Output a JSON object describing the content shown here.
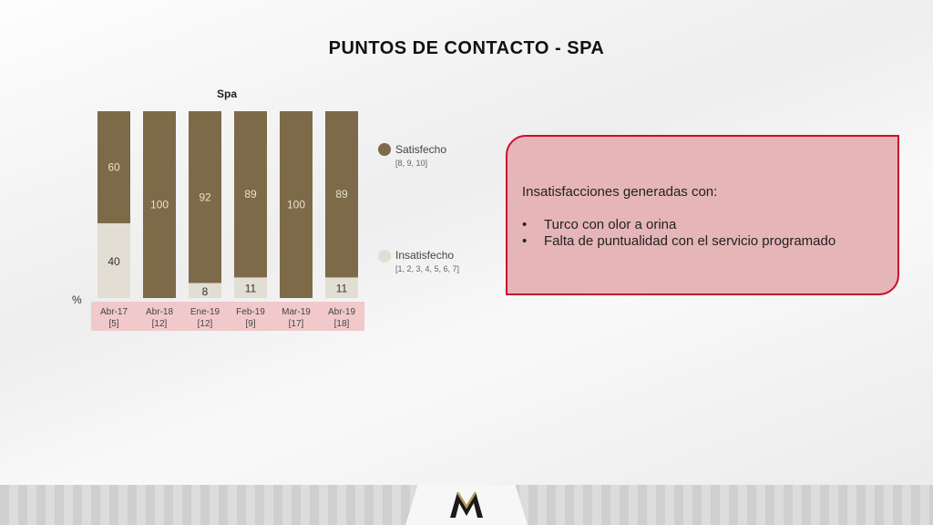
{
  "slide_title": "PUNTOS DE CONTACTO - SPA",
  "chart_data": {
    "type": "bar",
    "stacked": true,
    "title": "Spa",
    "ylabel": "%",
    "ylim": [
      0,
      100
    ],
    "categories": [
      "Abr-17",
      "Abr-18",
      "Ene-19",
      "Feb-19",
      "Mar-19",
      "Abr-19"
    ],
    "sample_sizes": [
      "[5]",
      "[12]",
      "[12]",
      "[9]",
      "[17]",
      "[18]"
    ],
    "series": [
      {
        "name": "Satisfecho",
        "values": [
          60,
          100,
          92,
          89,
          100,
          89
        ],
        "color": "#7d6a48"
      },
      {
        "name": "Insatisfecho",
        "values": [
          40,
          0,
          8,
          11,
          0,
          11
        ],
        "color": "#e3ded4"
      }
    ],
    "legend": [
      {
        "label": "Satisfecho",
        "sub": "[8, 9, 10]",
        "color": "#7d6a48"
      },
      {
        "label": "Insatisfecho",
        "sub": "[1, 2, 3, 4, 5, 6, 7]",
        "color": "#e3ded4"
      }
    ],
    "legend_position": "right"
  },
  "callout": {
    "heading": "Insatisfacciones generadas con:",
    "items": [
      "Turco con olor a orina",
      "Falta de puntualidad con el servicio programado"
    ]
  },
  "colors": {
    "accent_red": "#c8102e",
    "callout_bg": "#e6b5b7",
    "category_band": "#f2c9cb"
  }
}
